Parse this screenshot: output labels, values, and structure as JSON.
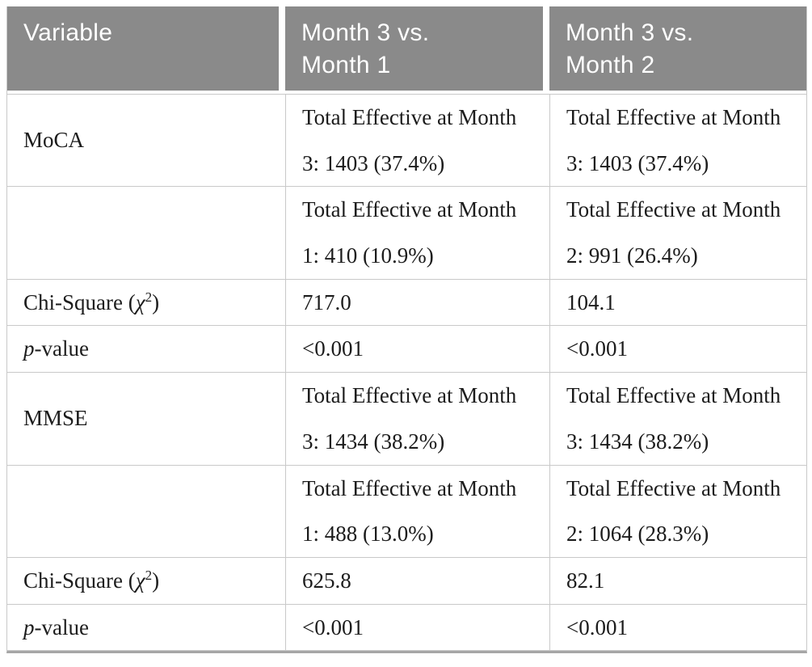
{
  "colors": {
    "header_bg": "#8a8a8a",
    "header_text": "#ffffff",
    "body_text": "#1c1c1c",
    "grid_line": "#c9c9c9",
    "bottom_border": "#a6a6a6"
  },
  "table": {
    "header": {
      "variable": "Variable",
      "comparison1": {
        "line1": "Month 3 vs.",
        "line2": "Month 1"
      },
      "comparison2": {
        "line1": "Month 3 vs.",
        "line2": "Month 2"
      }
    },
    "rows": [
      {
        "variable": "MoCA",
        "col2_line1": "Total Effective at Month",
        "col2_line2": "3: 1403 (37.4%)",
        "col3_line1": "Total Effective at Month",
        "col3_line2": "3: 1403 (37.4%)"
      },
      {
        "variable": "",
        "col2_line1": "Total Effective at Month",
        "col2_line2": "1: 410 (10.9%)",
        "col3_line1": "Total Effective at Month",
        "col3_line2": "2: 991 (26.4%)"
      },
      {
        "label_prefix": "Chi-Square (",
        "label_chi": "χ",
        "label_sup": "2",
        "label_suffix": ")",
        "col2": "717.0",
        "col3": "104.1"
      },
      {
        "label_italic": "p",
        "label_rest": "-value",
        "col2": "<0.001",
        "col3": "<0.001"
      },
      {
        "variable": "MMSE",
        "col2_line1": "Total Effective at Month",
        "col2_line2": "3: 1434 (38.2%)",
        "col3_line1": "Total Effective at Month",
        "col3_line2": "3: 1434 (38.2%)"
      },
      {
        "variable": "",
        "col2_line1": "Total Effective at Month",
        "col2_line2": "1: 488 (13.0%)",
        "col3_line1": "Total Effective at Month",
        "col3_line2": "2: 1064 (28.3%)"
      },
      {
        "label_prefix": "Chi-Square (",
        "label_chi": "χ",
        "label_sup": "2",
        "label_suffix": ")",
        "col2": "625.8",
        "col3": "82.1"
      },
      {
        "label_italic": "p",
        "label_rest": "-value",
        "col2": "<0.001",
        "col3": "<0.001"
      }
    ]
  },
  "chart_data": {
    "type": "table",
    "columns": [
      "Variable",
      "Month 3 vs. Month 1",
      "Month 3 vs. Month 2"
    ],
    "rows": [
      [
        "MoCA",
        "Total Effective at Month 3: 1403 (37.4%)",
        "Total Effective at Month 3: 1403 (37.4%)"
      ],
      [
        "",
        "Total Effective at Month 1: 410 (10.9%)",
        "Total Effective at Month 2: 991 (26.4%)"
      ],
      [
        "Chi-Square (χ²)",
        "717.0",
        "104.1"
      ],
      [
        "p-value",
        "<0.001",
        "<0.001"
      ],
      [
        "MMSE",
        "Total Effective at Month 3: 1434 (38.2%)",
        "Total Effective at Month 3: 1434 (38.2%)"
      ],
      [
        "",
        "Total Effective at Month 1: 488 (13.0%)",
        "Total Effective at Month 2: 1064 (28.3%)"
      ],
      [
        "Chi-Square (χ²)",
        "625.8",
        "82.1"
      ],
      [
        "p-value",
        "<0.001",
        "<0.001"
      ]
    ]
  }
}
